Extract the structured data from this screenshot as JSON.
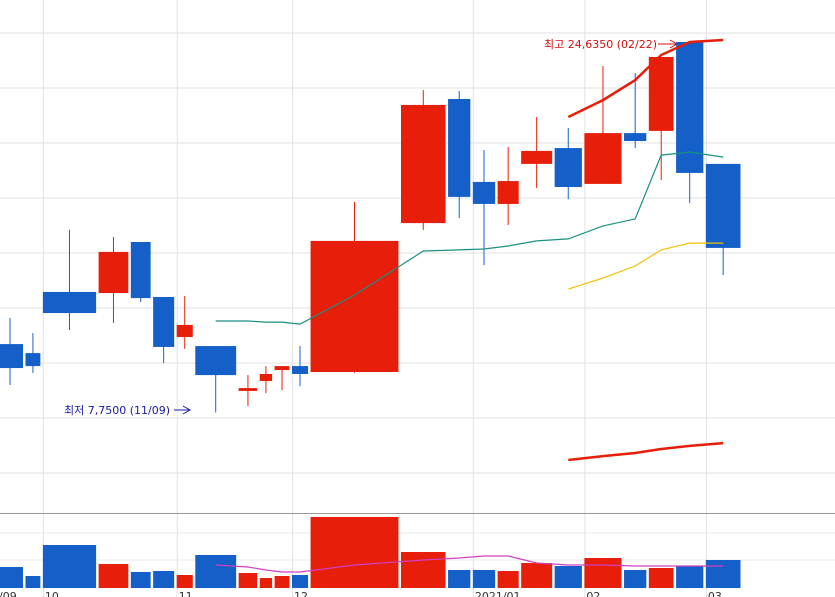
{
  "chart_data": {
    "type": "candlestick",
    "categories": [
      "/09",
      null,
      "10",
      null,
      null,
      null,
      "11",
      null,
      null,
      null,
      null,
      "12",
      null,
      null,
      null,
      "2021/01",
      null,
      null,
      null,
      "02",
      null,
      null,
      null,
      "03"
    ],
    "open": [
      10.86,
      10.45,
      13.23,
      13.18,
      15.5,
      13.0,
      11.18,
      10.77,
      8.73,
      9.18,
      9.68,
      9.86,
      9.59,
      16.36,
      22.0,
      18.23,
      17.23,
      19.05,
      19.77,
      18.14,
      20.45,
      20.55,
      24.59,
      19.05
    ],
    "high": [
      12.05,
      11.36,
      16.05,
      15.73,
      15.5,
      13.0,
      13.05,
      10.77,
      9.45,
      9.86,
      9.86,
      10.77,
      17.32,
      22.41,
      22.36,
      19.68,
      19.82,
      21.18,
      20.68,
      23.5,
      23.18,
      23.91,
      24.635,
      19.05
    ],
    "low": [
      9.0,
      9.55,
      11.5,
      11.82,
      12.77,
      10.0,
      10.64,
      7.75,
      8.05,
      8.64,
      8.77,
      8.95,
      9.55,
      16.05,
      16.59,
      14.45,
      16.27,
      17.95,
      17.45,
      18.14,
      19.77,
      18.32,
      17.27,
      14.0
    ],
    "close": [
      9.77,
      9.86,
      12.27,
      15.05,
      12.95,
      10.73,
      11.73,
      9.45,
      8.86,
      9.5,
      9.86,
      9.5,
      15.55,
      21.73,
      17.55,
      17.23,
      18.27,
      19.64,
      18.0,
      20.45,
      20.09,
      23.91,
      18.64,
      15.23
    ],
    "volume": [
      21,
      12,
      43,
      24,
      16,
      17,
      13,
      33,
      15,
      10,
      12,
      13,
      71,
      36,
      18,
      18,
      17,
      25,
      22,
      30,
      18,
      20,
      22,
      28
    ],
    "up_color": "#e61e0a",
    "down_color": "#1460c8",
    "ylim": [
      3.25,
      26.5
    ],
    "yticks": [
      5,
      7.5,
      10,
      12.5,
      15,
      17.5,
      20,
      22.5,
      25
    ],
    "volume_lim": [
      0,
      76
    ],
    "grid": true,
    "series": [
      {
        "color": "#1a9080",
        "values": [
          null,
          null,
          null,
          null,
          null,
          null,
          null,
          11.91,
          11.91,
          11.86,
          11.86,
          11.77,
          13.09,
          15.09,
          15.14,
          15.18,
          15.32,
          15.55,
          15.64,
          16.23,
          16.55,
          19.45,
          19.59,
          19.36
        ]
      },
      {
        "color": "#f0c000",
        "values": [
          null,
          null,
          null,
          null,
          null,
          null,
          null,
          null,
          null,
          null,
          null,
          null,
          null,
          null,
          null,
          null,
          null,
          null,
          13.36,
          13.86,
          14.41,
          15.14,
          15.45,
          15.45
        ]
      },
      {
        "color": "#e61e0a",
        "values": [
          null,
          null,
          null,
          null,
          null,
          null,
          null,
          null,
          null,
          null,
          null,
          null,
          null,
          null,
          null,
          null,
          null,
          null,
          21.18,
          21.95,
          22.86,
          24.0,
          24.59,
          24.68
        ]
      },
      {
        "color": "#e61e0a",
        "values": [
          null,
          null,
          null,
          null,
          null,
          null,
          null,
          null,
          null,
          null,
          null,
          null,
          null,
          null,
          null,
          null,
          null,
          null,
          5.59,
          5.77,
          5.91,
          6.09,
          6.23,
          6.36
        ]
      },
      {
        "color": "#d040c0",
        "axis": "volume",
        "values": [
          null,
          null,
          null,
          null,
          null,
          null,
          null,
          23,
          21,
          18,
          16,
          16,
          23,
          28,
          30,
          32,
          32,
          25,
          23,
          23,
          22,
          22,
          22,
          22
        ]
      }
    ],
    "annotations": {
      "high": "최고 24,6350 (02/22)",
      "low": "최저 7,7500 (11/09)"
    }
  }
}
